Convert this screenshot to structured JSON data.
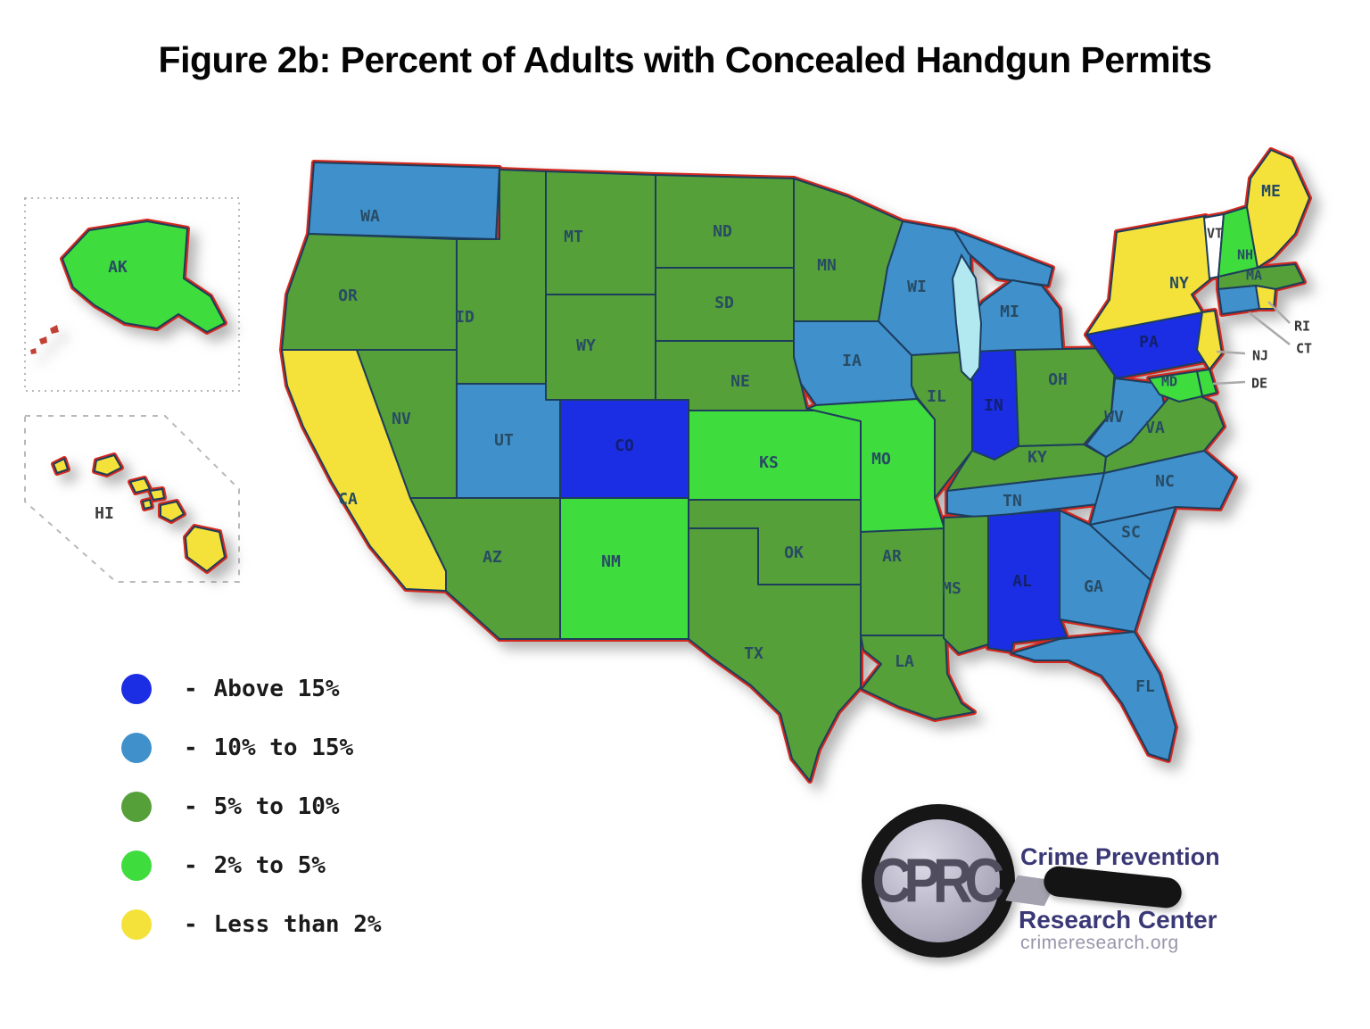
{
  "title": "Figure 2b: Percent of Adults with Concealed Handgun Permits",
  "legend": {
    "dash": "-",
    "items": [
      {
        "key": "above15",
        "label": "Above 15%"
      },
      {
        "key": "b10to15",
        "label": "10% to 15%"
      },
      {
        "key": "b5to10",
        "label": "5% to 10%"
      },
      {
        "key": "b2to5",
        "label": "2% to 5%"
      },
      {
        "key": "lt2",
        "label": "Less than 2%"
      }
    ]
  },
  "colors": {
    "above15": "#1b2ee4",
    "b10to15": "#4090cc",
    "b5to10": "#55a039",
    "b2to5": "#3edc3d",
    "lt2": "#f4e23a",
    "no_data": "#ffffff",
    "lake": "#b2e9f0",
    "outline": "#d5291f",
    "state_border": "#1d3d5c"
  },
  "map": {
    "states": [
      {
        "id": "WA",
        "label": "WA",
        "category": "b10to15"
      },
      {
        "id": "OR",
        "label": "OR",
        "category": "b5to10"
      },
      {
        "id": "CA",
        "label": "CA",
        "category": "lt2"
      },
      {
        "id": "NV",
        "label": "NV",
        "category": "b5to10"
      },
      {
        "id": "ID",
        "label": "ID",
        "category": "b5to10"
      },
      {
        "id": "MT",
        "label": "MT",
        "category": "b5to10"
      },
      {
        "id": "WY",
        "label": "WY",
        "category": "b5to10"
      },
      {
        "id": "UT",
        "label": "UT",
        "category": "b10to15"
      },
      {
        "id": "CO",
        "label": "CO",
        "category": "above15"
      },
      {
        "id": "NM",
        "label": "NM",
        "category": "b2to5"
      },
      {
        "id": "AZ",
        "label": "AZ",
        "category": "b5to10"
      },
      {
        "id": "ND",
        "label": "ND",
        "category": "b5to10"
      },
      {
        "id": "SD",
        "label": "SD",
        "category": "b5to10"
      },
      {
        "id": "NE",
        "label": "NE",
        "category": "b5to10"
      },
      {
        "id": "KS",
        "label": "KS",
        "category": "b2to5"
      },
      {
        "id": "OK",
        "label": "OK",
        "category": "b5to10"
      },
      {
        "id": "TX",
        "label": "TX",
        "category": "b5to10"
      },
      {
        "id": "MN",
        "label": "MN",
        "category": "b5to10"
      },
      {
        "id": "IA",
        "label": "IA",
        "category": "b10to15"
      },
      {
        "id": "MO",
        "label": "MO",
        "category": "b2to5"
      },
      {
        "id": "AR",
        "label": "AR",
        "category": "b5to10"
      },
      {
        "id": "LA",
        "label": "LA",
        "category": "b5to10"
      },
      {
        "id": "WI",
        "label": "WI",
        "category": "b10to15"
      },
      {
        "id": "MI",
        "label": "MI",
        "category": "b10to15"
      },
      {
        "id": "IL",
        "label": "IL",
        "category": "b5to10"
      },
      {
        "id": "IN",
        "label": "IN",
        "category": "above15"
      },
      {
        "id": "OH",
        "label": "OH",
        "category": "b5to10"
      },
      {
        "id": "KY",
        "label": "KY",
        "category": "b5to10"
      },
      {
        "id": "TN",
        "label": "TN",
        "category": "b10to15"
      },
      {
        "id": "MS",
        "label": "MS",
        "category": "b5to10"
      },
      {
        "id": "AL",
        "label": "AL",
        "category": "above15"
      },
      {
        "id": "GA",
        "label": "GA",
        "category": "b10to15"
      },
      {
        "id": "FL",
        "label": "FL",
        "category": "b10to15"
      },
      {
        "id": "SC",
        "label": "SC",
        "category": "b10to15"
      },
      {
        "id": "NC",
        "label": "NC",
        "category": "b10to15"
      },
      {
        "id": "VA",
        "label": "VA",
        "category": "b5to10"
      },
      {
        "id": "WV",
        "label": "WV",
        "category": "b10to15"
      },
      {
        "id": "PA",
        "label": "PA",
        "category": "above15"
      },
      {
        "id": "NY",
        "label": "NY",
        "category": "lt2"
      },
      {
        "id": "NJ",
        "label": "NJ",
        "category": "lt2"
      },
      {
        "id": "DE",
        "label": "DE",
        "category": "b2to5"
      },
      {
        "id": "MD",
        "label": "MD",
        "category": "b2to5"
      },
      {
        "id": "VT",
        "label": "VT",
        "category": "no_data"
      },
      {
        "id": "NH",
        "label": "NH",
        "category": "b2to5"
      },
      {
        "id": "MA",
        "label": "MA",
        "category": "b5to10"
      },
      {
        "id": "CT",
        "label": "CT",
        "category": "b10to15"
      },
      {
        "id": "RI",
        "label": "RI",
        "category": "lt2"
      },
      {
        "id": "ME",
        "label": "ME",
        "category": "lt2"
      }
    ],
    "insets": [
      {
        "id": "AK",
        "label": "AK",
        "category": "b2to5"
      },
      {
        "id": "HI",
        "label": "HI",
        "category": "lt2"
      }
    ]
  },
  "logo": {
    "monogram": "CPRC",
    "line1": "Crime Prevention",
    "line2": "Research Center",
    "url": "crimeresearch.org"
  },
  "chart_data": {
    "type": "choropleth",
    "title": "Figure 2b: Percent of Adults with Concealed Handgun Permits",
    "legend_position": "bottom-left",
    "categories": [
      "Above 15%",
      "10% to 15%",
      "5% to 10%",
      "2% to 5%",
      "Less than 2%"
    ],
    "groups": {
      "Above 15%": [
        "CO",
        "IN",
        "PA",
        "AL"
      ],
      "10% to 15%": [
        "WA",
        "UT",
        "IA",
        "WI",
        "MI",
        "WV",
        "TN",
        "NC",
        "SC",
        "GA",
        "FL",
        "CT"
      ],
      "5% to 10%": [
        "OR",
        "ID",
        "MT",
        "WY",
        "NV",
        "AZ",
        "ND",
        "SD",
        "NE",
        "OK",
        "TX",
        "MN",
        "IL",
        "OH",
        "KY",
        "VA",
        "AR",
        "LA",
        "MS",
        "MA"
      ],
      "2% to 5%": [
        "NM",
        "KS",
        "MO",
        "NH",
        "DE",
        "MD",
        "AK"
      ],
      "Less than 2%": [
        "CA",
        "NY",
        "NJ",
        "ME",
        "RI",
        "HI"
      ],
      "No data shown": [
        "VT"
      ]
    }
  }
}
